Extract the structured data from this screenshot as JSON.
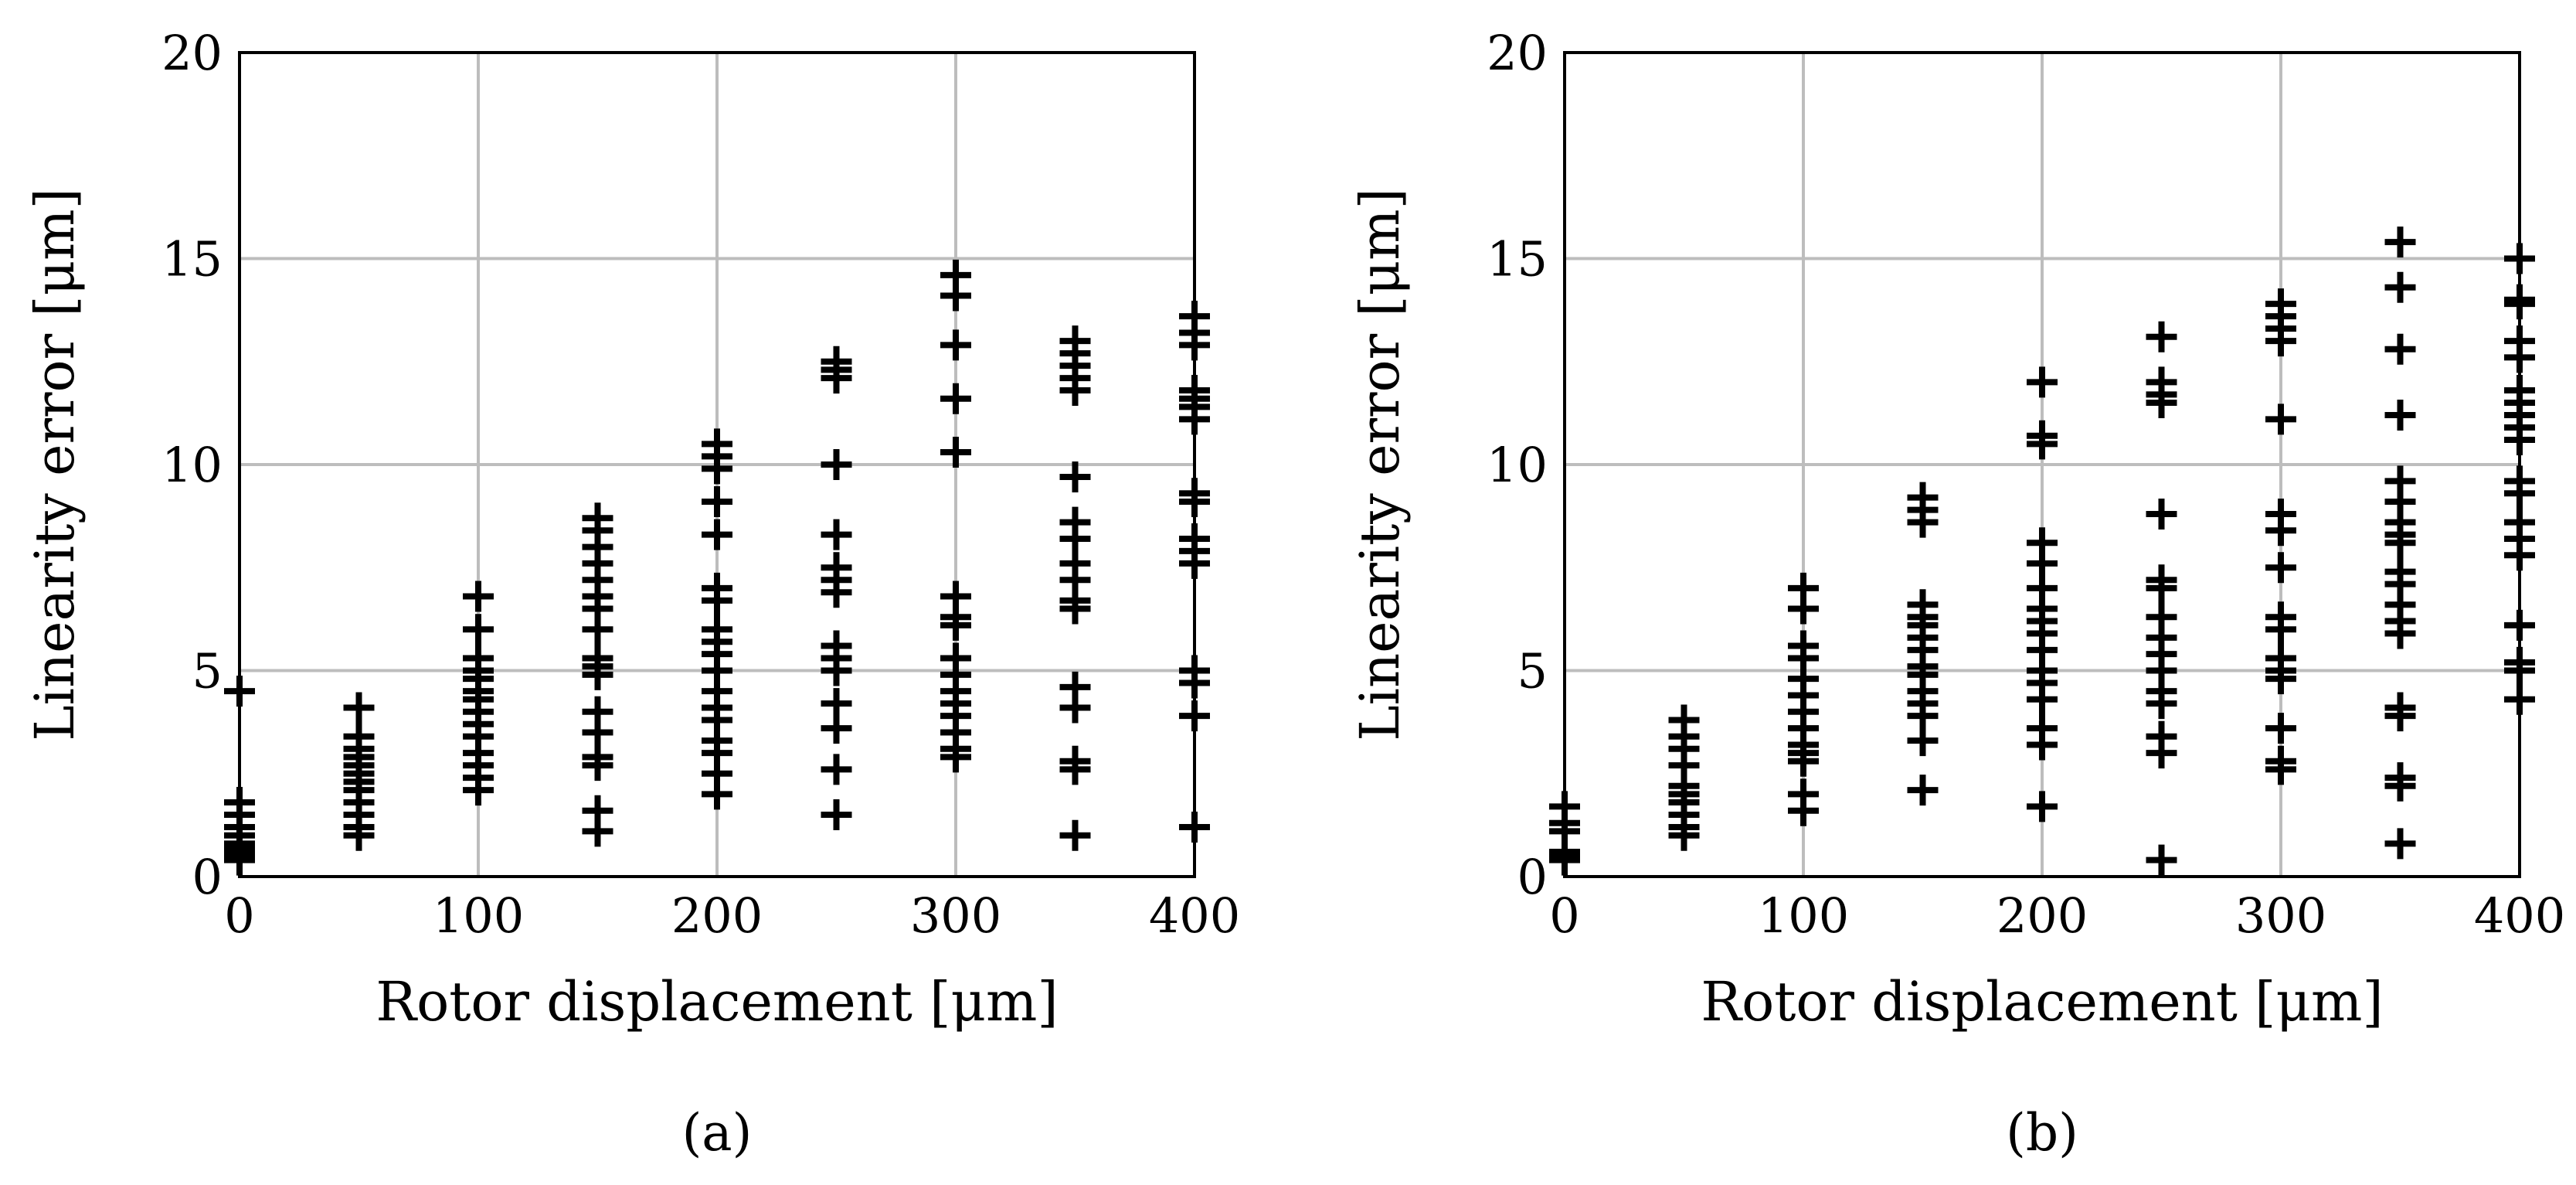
{
  "chart_data": [
    {
      "type": "scatter",
      "panel_label": "(a)",
      "xlabel": "Rotor displacement [μm]",
      "ylabel": "Linearity error [μm]",
      "xlim": [
        0,
        400
      ],
      "ylim": [
        0,
        20
      ],
      "xticks": [
        0,
        100,
        200,
        300,
        400
      ],
      "yticks": [
        0,
        5,
        10,
        15,
        20
      ],
      "grid": true,
      "marker": "plus",
      "points": [
        [
          0,
          4.5
        ],
        [
          0,
          1.8
        ],
        [
          0,
          1.5
        ],
        [
          0,
          1.2
        ],
        [
          0,
          1.0
        ],
        [
          0,
          0.8
        ],
        [
          0,
          0.7
        ],
        [
          0,
          0.6
        ],
        [
          0,
          0.5
        ],
        [
          0,
          0.4
        ],
        [
          50,
          4.1
        ],
        [
          50,
          3.4
        ],
        [
          50,
          3.1
        ],
        [
          50,
          2.9
        ],
        [
          50,
          2.7
        ],
        [
          50,
          2.5
        ],
        [
          50,
          2.3
        ],
        [
          50,
          2.1
        ],
        [
          50,
          1.8
        ],
        [
          50,
          1.5
        ],
        [
          50,
          1.2
        ],
        [
          50,
          1.0
        ],
        [
          100,
          6.8
        ],
        [
          100,
          6.0
        ],
        [
          100,
          5.3
        ],
        [
          100,
          5.0
        ],
        [
          100,
          4.8
        ],
        [
          100,
          4.5
        ],
        [
          100,
          4.3
        ],
        [
          100,
          4.0
        ],
        [
          100,
          3.7
        ],
        [
          100,
          3.4
        ],
        [
          100,
          3.0
        ],
        [
          100,
          2.7
        ],
        [
          100,
          2.4
        ],
        [
          100,
          2.1
        ],
        [
          150,
          8.7
        ],
        [
          150,
          8.4
        ],
        [
          150,
          8.0
        ],
        [
          150,
          7.6
        ],
        [
          150,
          7.2
        ],
        [
          150,
          6.8
        ],
        [
          150,
          6.5
        ],
        [
          150,
          6.0
        ],
        [
          150,
          5.3
        ],
        [
          150,
          5.1
        ],
        [
          150,
          4.9
        ],
        [
          150,
          4.0
        ],
        [
          150,
          3.5
        ],
        [
          150,
          2.9
        ],
        [
          150,
          2.7
        ],
        [
          150,
          1.6
        ],
        [
          150,
          1.1
        ],
        [
          200,
          10.5
        ],
        [
          200,
          10.2
        ],
        [
          200,
          9.9
        ],
        [
          200,
          9.1
        ],
        [
          200,
          8.3
        ],
        [
          200,
          7.0
        ],
        [
          200,
          6.7
        ],
        [
          200,
          6.0
        ],
        [
          200,
          5.7
        ],
        [
          200,
          5.4
        ],
        [
          200,
          5.0
        ],
        [
          200,
          4.5
        ],
        [
          200,
          4.1
        ],
        [
          200,
          3.8
        ],
        [
          200,
          3.3
        ],
        [
          200,
          3.0
        ],
        [
          200,
          2.5
        ],
        [
          200,
          2.0
        ],
        [
          250,
          12.5
        ],
        [
          250,
          12.3
        ],
        [
          250,
          12.1
        ],
        [
          250,
          10.0
        ],
        [
          250,
          8.3
        ],
        [
          250,
          7.5
        ],
        [
          250,
          7.2
        ],
        [
          250,
          6.9
        ],
        [
          250,
          5.6
        ],
        [
          250,
          5.3
        ],
        [
          250,
          5.0
        ],
        [
          250,
          4.2
        ],
        [
          250,
          3.6
        ],
        [
          250,
          2.6
        ],
        [
          250,
          1.5
        ],
        [
          300,
          14.6
        ],
        [
          300,
          14.1
        ],
        [
          300,
          12.9
        ],
        [
          300,
          11.6
        ],
        [
          300,
          10.3
        ],
        [
          300,
          6.8
        ],
        [
          300,
          6.3
        ],
        [
          300,
          6.1
        ],
        [
          300,
          5.3
        ],
        [
          300,
          4.9
        ],
        [
          300,
          4.5
        ],
        [
          300,
          4.2
        ],
        [
          300,
          3.9
        ],
        [
          300,
          3.5
        ],
        [
          300,
          3.1
        ],
        [
          300,
          2.9
        ],
        [
          350,
          13.0
        ],
        [
          350,
          12.7
        ],
        [
          350,
          12.4
        ],
        [
          350,
          12.1
        ],
        [
          350,
          11.8
        ],
        [
          350,
          9.7
        ],
        [
          350,
          8.6
        ],
        [
          350,
          8.2
        ],
        [
          350,
          7.6
        ],
        [
          350,
          7.2
        ],
        [
          350,
          6.7
        ],
        [
          350,
          6.5
        ],
        [
          350,
          4.6
        ],
        [
          350,
          4.1
        ],
        [
          350,
          2.8
        ],
        [
          350,
          2.6
        ],
        [
          350,
          1.0
        ],
        [
          400,
          13.6
        ],
        [
          400,
          13.2
        ],
        [
          400,
          12.9
        ],
        [
          400,
          11.8
        ],
        [
          400,
          11.6
        ],
        [
          400,
          11.4
        ],
        [
          400,
          11.1
        ],
        [
          400,
          9.3
        ],
        [
          400,
          9.1
        ],
        [
          400,
          8.2
        ],
        [
          400,
          7.9
        ],
        [
          400,
          7.6
        ],
        [
          400,
          5.0
        ],
        [
          400,
          4.7
        ],
        [
          400,
          3.9
        ],
        [
          400,
          1.2
        ]
      ]
    },
    {
      "type": "scatter",
      "panel_label": "(b)",
      "xlabel": "Rotor displacement [μm]",
      "ylabel": "Linearity error [μm]",
      "xlim": [
        0,
        400
      ],
      "ylim": [
        0,
        20
      ],
      "xticks": [
        0,
        100,
        200,
        300,
        400
      ],
      "yticks": [
        0,
        5,
        10,
        15,
        20
      ],
      "grid": true,
      "marker": "plus",
      "points": [
        [
          0,
          1.7
        ],
        [
          0,
          1.3
        ],
        [
          0,
          1.1
        ],
        [
          0,
          0.6
        ],
        [
          0,
          0.5
        ],
        [
          0,
          0.4
        ],
        [
          50,
          3.8
        ],
        [
          50,
          3.4
        ],
        [
          50,
          3.1
        ],
        [
          50,
          2.7
        ],
        [
          50,
          2.2
        ],
        [
          50,
          2.0
        ],
        [
          50,
          1.8
        ],
        [
          50,
          1.5
        ],
        [
          50,
          1.2
        ],
        [
          50,
          1.0
        ],
        [
          100,
          7.0
        ],
        [
          100,
          6.5
        ],
        [
          100,
          5.6
        ],
        [
          100,
          5.3
        ],
        [
          100,
          4.8
        ],
        [
          100,
          4.4
        ],
        [
          100,
          4.0
        ],
        [
          100,
          3.6
        ],
        [
          100,
          3.2
        ],
        [
          100,
          3.0
        ],
        [
          100,
          2.8
        ],
        [
          100,
          2.0
        ],
        [
          100,
          1.6
        ],
        [
          150,
          9.2
        ],
        [
          150,
          8.9
        ],
        [
          150,
          8.6
        ],
        [
          150,
          6.6
        ],
        [
          150,
          6.3
        ],
        [
          150,
          6.1
        ],
        [
          150,
          5.8
        ],
        [
          150,
          5.5
        ],
        [
          150,
          5.1
        ],
        [
          150,
          4.9
        ],
        [
          150,
          4.5
        ],
        [
          150,
          4.2
        ],
        [
          150,
          3.9
        ],
        [
          150,
          3.3
        ],
        [
          150,
          2.1
        ],
        [
          200,
          12.0
        ],
        [
          200,
          10.7
        ],
        [
          200,
          10.5
        ],
        [
          200,
          8.1
        ],
        [
          200,
          7.6
        ],
        [
          200,
          7.0
        ],
        [
          200,
          6.5
        ],
        [
          200,
          6.2
        ],
        [
          200,
          5.9
        ],
        [
          200,
          5.5
        ],
        [
          200,
          5.0
        ],
        [
          200,
          4.7
        ],
        [
          200,
          4.3
        ],
        [
          200,
          3.6
        ],
        [
          200,
          3.2
        ],
        [
          200,
          1.7
        ],
        [
          250,
          13.1
        ],
        [
          250,
          12.0
        ],
        [
          250,
          11.7
        ],
        [
          250,
          11.5
        ],
        [
          250,
          8.8
        ],
        [
          250,
          7.2
        ],
        [
          250,
          7.0
        ],
        [
          250,
          6.3
        ],
        [
          250,
          5.8
        ],
        [
          250,
          5.4
        ],
        [
          250,
          5.0
        ],
        [
          250,
          4.5
        ],
        [
          250,
          4.2
        ],
        [
          250,
          3.4
        ],
        [
          250,
          3.0
        ],
        [
          250,
          0.4
        ],
        [
          300,
          13.9
        ],
        [
          300,
          13.6
        ],
        [
          300,
          13.3
        ],
        [
          300,
          13.0
        ],
        [
          300,
          11.1
        ],
        [
          300,
          8.8
        ],
        [
          300,
          8.4
        ],
        [
          300,
          7.5
        ],
        [
          300,
          6.3
        ],
        [
          300,
          6.0
        ],
        [
          300,
          5.3
        ],
        [
          300,
          5.0
        ],
        [
          300,
          4.8
        ],
        [
          300,
          3.6
        ],
        [
          300,
          2.8
        ],
        [
          300,
          2.6
        ],
        [
          350,
          15.4
        ],
        [
          350,
          14.3
        ],
        [
          350,
          12.8
        ],
        [
          350,
          11.2
        ],
        [
          350,
          9.6
        ],
        [
          350,
          9.1
        ],
        [
          350,
          8.6
        ],
        [
          350,
          8.3
        ],
        [
          350,
          8.1
        ],
        [
          350,
          7.4
        ],
        [
          350,
          7.1
        ],
        [
          350,
          6.6
        ],
        [
          350,
          6.2
        ],
        [
          350,
          5.9
        ],
        [
          350,
          4.1
        ],
        [
          350,
          3.9
        ],
        [
          350,
          2.4
        ],
        [
          350,
          2.2
        ],
        [
          350,
          0.8
        ],
        [
          400,
          15.0
        ],
        [
          400,
          14.0
        ],
        [
          400,
          13.9
        ],
        [
          400,
          13.0
        ],
        [
          400,
          12.6
        ],
        [
          400,
          11.8
        ],
        [
          400,
          11.5
        ],
        [
          400,
          11.2
        ],
        [
          400,
          10.9
        ],
        [
          400,
          10.6
        ],
        [
          400,
          9.6
        ],
        [
          400,
          9.3
        ],
        [
          400,
          8.6
        ],
        [
          400,
          8.2
        ],
        [
          400,
          7.8
        ],
        [
          400,
          6.1
        ],
        [
          400,
          5.2
        ],
        [
          400,
          5.0
        ],
        [
          400,
          4.3
        ]
      ]
    }
  ]
}
